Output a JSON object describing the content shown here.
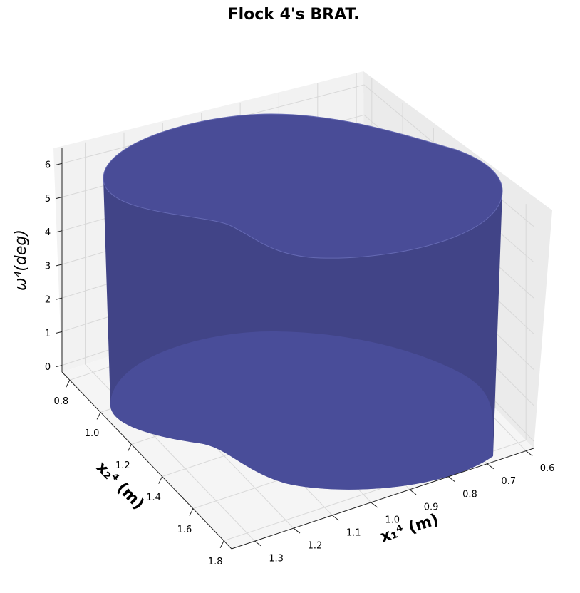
{
  "chart_data": {
    "type": "surface3d",
    "title": "Flock 4's BRAT.",
    "x_label": "x₁⁴ (m)",
    "y_label": "x₂⁴ (m)",
    "z_label": "ω⁴(deg)",
    "xlim": [
      1.36,
      0.58
    ],
    "ylim": [
      0.75,
      1.85
    ],
    "zlim": [
      -0.2,
      6.45
    ],
    "xticks": [
      0.6,
      0.7,
      0.8,
      0.9,
      {
        "value": 1.0,
        "label": "1.0"
      },
      1.1,
      1.2,
      1.3
    ],
    "yticks": [
      0.8,
      {
        "value": 1.0,
        "label": "1.0"
      },
      1.2,
      1.4,
      1.6,
      1.8
    ],
    "zticks": [
      0,
      1,
      2,
      3,
      4,
      5,
      6
    ],
    "color": "#414487",
    "grid": true
  }
}
